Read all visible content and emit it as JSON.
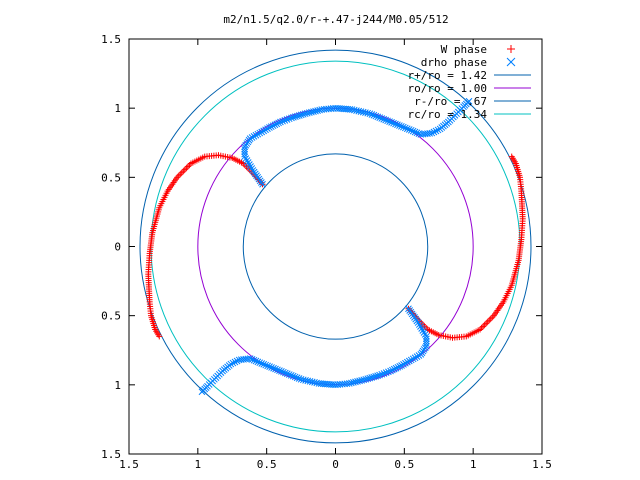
{
  "chart_data": {
    "type": "scatter",
    "title": "m2/n1.5/q2.0/r-+.47-j244/M0.05/512",
    "xlim": [
      -1.5,
      1.5
    ],
    "ylim": [
      -1.5,
      1.5
    ],
    "x_ticks": [
      -1.5,
      -1,
      -0.5,
      0,
      0.5,
      1,
      1.5
    ],
    "y_ticks": [
      -1.5,
      -1,
      -0.5,
      0,
      0.5,
      1,
      1.5
    ],
    "x_tick_labels": [
      "1.5",
      "1",
      "0.5",
      "0",
      "0.5",
      "1",
      "1.5"
    ],
    "y_tick_labels": [
      "1.5",
      "1",
      "0.5",
      "0",
      "0.5",
      "1",
      "1.5"
    ],
    "grid": false,
    "legend_position": "top-right",
    "series": [
      {
        "name": "W phase",
        "marker": "plus",
        "color": "#ff0000",
        "segments": [
          [
            [
              -0.53,
              0.45
            ],
            [
              -0.6,
              0.53
            ],
            [
              -0.67,
              0.6
            ],
            [
              -0.75,
              0.64
            ],
            [
              -0.85,
              0.66
            ],
            [
              -0.95,
              0.65
            ],
            [
              -1.05,
              0.6
            ],
            [
              -1.15,
              0.5
            ],
            [
              -1.22,
              0.4
            ],
            [
              -1.28,
              0.28
            ],
            [
              -1.33,
              0.1
            ],
            [
              -1.35,
              -0.05
            ],
            [
              -1.36,
              -0.2
            ],
            [
              -1.35,
              -0.4
            ],
            [
              -1.34,
              -0.5
            ],
            [
              -1.31,
              -0.6
            ],
            [
              -1.28,
              -0.65
            ]
          ],
          [
            [
              0.53,
              -0.45
            ],
            [
              0.6,
              -0.53
            ],
            [
              0.67,
              -0.6
            ],
            [
              0.75,
              -0.64
            ],
            [
              0.85,
              -0.66
            ],
            [
              0.95,
              -0.65
            ],
            [
              1.05,
              -0.6
            ],
            [
              1.15,
              -0.5
            ],
            [
              1.22,
              -0.4
            ],
            [
              1.28,
              -0.28
            ],
            [
              1.33,
              -0.1
            ],
            [
              1.35,
              0.05
            ],
            [
              1.36,
              0.2
            ],
            [
              1.35,
              0.4
            ],
            [
              1.34,
              0.5
            ],
            [
              1.31,
              0.6
            ],
            [
              1.28,
              0.65
            ]
          ]
        ]
      },
      {
        "name": "drho phase",
        "marker": "cross",
        "color": "#0080ff",
        "segments": [
          [
            [
              -0.53,
              0.45
            ],
            [
              -0.6,
              0.55
            ],
            [
              -0.66,
              0.65
            ],
            [
              -0.66,
              0.72
            ],
            [
              -0.62,
              0.78
            ],
            [
              -0.55,
              0.82
            ],
            [
              -0.48,
              0.86
            ],
            [
              -0.4,
              0.9
            ],
            [
              -0.32,
              0.93
            ],
            [
              -0.22,
              0.96
            ],
            [
              -0.1,
              0.99
            ],
            [
              0.0,
              1.0
            ],
            [
              0.12,
              0.99
            ],
            [
              0.25,
              0.96
            ],
            [
              0.35,
              0.92
            ],
            [
              0.45,
              0.88
            ],
            [
              0.55,
              0.84
            ],
            [
              0.62,
              0.81
            ],
            [
              0.7,
              0.82
            ],
            [
              0.76,
              0.85
            ],
            [
              0.82,
              0.9
            ],
            [
              0.88,
              0.96
            ],
            [
              0.93,
              1.01
            ],
            [
              0.97,
              1.05
            ]
          ],
          [
            [
              0.53,
              -0.45
            ],
            [
              0.6,
              -0.55
            ],
            [
              0.66,
              -0.65
            ],
            [
              0.66,
              -0.72
            ],
            [
              0.62,
              -0.78
            ],
            [
              0.55,
              -0.82
            ],
            [
              0.48,
              -0.86
            ],
            [
              0.4,
              -0.9
            ],
            [
              0.32,
              -0.93
            ],
            [
              0.22,
              -0.96
            ],
            [
              0.1,
              -0.99
            ],
            [
              0.0,
              -1.0
            ],
            [
              -0.12,
              -0.99
            ],
            [
              -0.25,
              -0.96
            ],
            [
              -0.35,
              -0.92
            ],
            [
              -0.45,
              -0.88
            ],
            [
              -0.55,
              -0.84
            ],
            [
              -0.62,
              -0.81
            ],
            [
              -0.7,
              -0.82
            ],
            [
              -0.76,
              -0.85
            ],
            [
              -0.82,
              -0.9
            ],
            [
              -0.88,
              -0.96
            ],
            [
              -0.93,
              -1.01
            ],
            [
              -0.97,
              -1.05
            ]
          ]
        ]
      },
      {
        "name": "r+/ro = 1.42",
        "type": "circle",
        "radius": 1.42,
        "color": "#0060ad"
      },
      {
        "name": "ro/ro = 1.00",
        "type": "circle",
        "radius": 1.0,
        "color": "#9400d3"
      },
      {
        "name": "r-/ro = .67",
        "type": "circle",
        "radius": 0.67,
        "color": "#0060ad"
      },
      {
        "name": "rc/ro = 1.34",
        "type": "circle",
        "radius": 1.34,
        "color": "#00c0c0"
      }
    ]
  }
}
